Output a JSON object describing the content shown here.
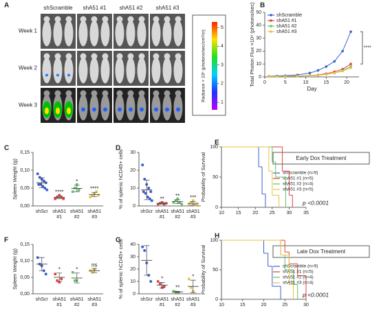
{
  "panel_a": {
    "panel": "A",
    "columns": [
      "shScramble",
      "shA51 #1",
      "shA51 #2",
      "shA51 #3"
    ],
    "rows": [
      "Week 1",
      "Week 2",
      "Week 3"
    ],
    "colorbar": {
      "label": "Radiance × 10⁵ (photons/sec/cm²/sr)",
      "range": [
        0.6,
        5.3
      ],
      "ticks": [
        1,
        2,
        3,
        4,
        5
      ]
    }
  },
  "chart_data": [
    {
      "panel": "B",
      "type": "line",
      "xlabel": "Day",
      "ylabel": "Total Photon Flux ×10⁸ (photons/sec)",
      "xlim": [
        0,
        23
      ],
      "xticks": [
        0,
        5,
        10,
        15,
        20
      ],
      "ylim": [
        0,
        50
      ],
      "yticks": [
        0,
        10,
        20,
        30,
        40,
        50
      ],
      "x": [
        1,
        3,
        5,
        8,
        11,
        13,
        15,
        17,
        19,
        21
      ],
      "series": [
        {
          "name": "shScramble",
          "color": "#3a5fcd",
          "values": [
            0.5,
            0.8,
            1,
            1.5,
            3,
            5,
            8,
            12,
            20,
            35
          ]
        },
        {
          "name": "shA51 #1",
          "color": "#e0403a",
          "values": [
            0.3,
            0.4,
            0.5,
            0.7,
            1,
            1.5,
            2.5,
            4,
            6,
            10
          ]
        },
        {
          "name": "shA51 #2",
          "color": "#5fc35f",
          "values": [
            0.3,
            0.4,
            0.5,
            0.6,
            0.9,
            1.3,
            2,
            3,
            5,
            8
          ]
        },
        {
          "name": "shA51 #3",
          "color": "#e8c040",
          "values": [
            0.3,
            0.4,
            0.5,
            0.6,
            0.8,
            1.2,
            2,
            3,
            4.5,
            7
          ]
        }
      ],
      "annotation": "****"
    },
    {
      "panel": "C",
      "type": "dot",
      "ylabel": "Spleen Weight (g)",
      "ylim": [
        0,
        0.15
      ],
      "yticks": [
        {
          "value": 0,
          "label": "0,00"
        },
        {
          "value": 0.05,
          "label": "0,05"
        },
        {
          "value": 0.1,
          "label": "0,10"
        },
        {
          "value": 0.15,
          "label": "0,15"
        }
      ],
      "groups": [
        {
          "label": [
            "shScr"
          ],
          "color": "#3a5fcd",
          "points": [
            0.09,
            0.08,
            0.075,
            0.07,
            0.065,
            0.06,
            0.06,
            0.055,
            0.05,
            0.045
          ],
          "mean": 0.065,
          "sd": 0.014
        },
        {
          "label": [
            "shA51",
            "#1"
          ],
          "color": "#e0403a",
          "points": [
            0.02,
            0.025,
            0.03,
            0.025,
            0.02
          ],
          "mean": 0.024,
          "sd": 0.004,
          "sig": "****"
        },
        {
          "label": [
            "shA51",
            "#2"
          ],
          "color": "#5fc35f",
          "points": [
            0.04,
            0.05,
            0.06,
            0.045
          ],
          "mean": 0.049,
          "sd": 0.009,
          "sig": "*"
        },
        {
          "label": [
            "shA51",
            "#3"
          ],
          "color": "#e8c040",
          "points": [
            0.025,
            0.03,
            0.035,
            0.04,
            0.03
          ],
          "mean": 0.032,
          "sd": 0.006,
          "sig": "****"
        }
      ]
    },
    {
      "panel": "D",
      "type": "dot",
      "ylabel": "% of splenic hCD45+ cells",
      "ylim": [
        0,
        30
      ],
      "yticks": [
        0,
        10,
        20,
        30
      ],
      "groups": [
        {
          "label": [
            "shScr"
          ],
          "color": "#3a5fcd",
          "points": [
            23,
            15,
            12,
            10,
            8,
            8,
            7,
            5,
            4,
            3
          ],
          "mean": 9,
          "sd": 5.5
        },
        {
          "label": [
            "shA51",
            "#1"
          ],
          "color": "#e0403a",
          "points": [
            1,
            1.5,
            2,
            1,
            1.5
          ],
          "mean": 1.4,
          "sd": 0.4,
          "sig": "**"
        },
        {
          "label": [
            "shA51",
            "#2"
          ],
          "color": "#5fc35f",
          "points": [
            2,
            3,
            4,
            2,
            1
          ],
          "mean": 2.4,
          "sd": 1.1,
          "sig": "**"
        },
        {
          "label": [
            "shA51",
            "#3"
          ],
          "color": "#e8c040",
          "points": [
            1,
            2,
            3,
            0.5,
            1
          ],
          "mean": 1.5,
          "sd": 1,
          "sig": "***"
        }
      ]
    },
    {
      "panel": "E",
      "type": "survival",
      "ylabel": "Probability of Survival",
      "xlim": [
        10,
        35
      ],
      "xticks": [
        10,
        15,
        20,
        25,
        30,
        35
      ],
      "ylim": [
        0,
        100
      ],
      "yticks": [
        0,
        50,
        100
      ],
      "box": "Early Dox Treatment",
      "pvalue": "p <0.0001",
      "series": [
        {
          "name": "shScramble (n=9)",
          "color": "#3a5fcd",
          "x": [
            10,
            21,
            22,
            23
          ],
          "y": [
            100,
            67,
            22,
            0
          ]
        },
        {
          "name": "shA51 #1 (n=5)",
          "color": "#e0403a",
          "x": [
            10,
            28,
            30,
            31
          ],
          "y": [
            100,
            60,
            20,
            0
          ]
        },
        {
          "name": "shA51 #2 (n=4)",
          "color": "#5fc35f",
          "x": [
            10,
            25,
            26,
            29
          ],
          "y": [
            100,
            75,
            50,
            0
          ]
        },
        {
          "name": "shA51 #3 (n=5)",
          "color": "#e8c040",
          "x": [
            10,
            24,
            25,
            27
          ],
          "y": [
            100,
            60,
            20,
            0
          ]
        }
      ]
    },
    {
      "panel": "F",
      "type": "dot",
      "ylabel": "Spleen Weight (g)",
      "ylim": [
        0,
        0.15
      ],
      "yticks": [
        {
          "value": 0,
          "label": "0,00"
        },
        {
          "value": 0.05,
          "label": "0,05"
        },
        {
          "value": 0.1,
          "label": "0,10"
        },
        {
          "value": 0.15,
          "label": "0,15"
        }
      ],
      "groups": [
        {
          "label": [
            "shScr"
          ],
          "color": "#3a5fcd",
          "points": [
            0.11,
            0.09,
            0.085,
            0.07,
            0.06
          ],
          "mean": 0.09,
          "sd": 0.02
        },
        {
          "label": [
            "shA51",
            "#1"
          ],
          "color": "#e0403a",
          "points": [
            0.06,
            0.04,
            0.035,
            0.045
          ],
          "mean": 0.05,
          "sd": 0.013,
          "sig": "*"
        },
        {
          "label": [
            "shA51",
            "#2"
          ],
          "color": "#5fc35f",
          "points": [
            0.065,
            0.04,
            0.04
          ],
          "mean": 0.048,
          "sd": 0.015,
          "sig": "*"
        },
        {
          "label": [
            "shA51",
            "#3"
          ],
          "color": "#e8c040",
          "points": [
            0.07,
            0.065,
            0.075
          ],
          "mean": 0.07,
          "sd": 0.006,
          "sig": "ns"
        }
      ]
    },
    {
      "panel": "G",
      "type": "dot",
      "ylabel": "% of splenic hCD45+ cells",
      "ylim": [
        0,
        40
      ],
      "yticks": [
        0,
        10,
        20,
        30,
        40
      ],
      "groups": [
        {
          "label": [
            "shScr"
          ],
          "color": "#3a5fcd",
          "points": [
            38,
            35,
            25,
            15,
            10
          ],
          "mean": 27,
          "sd": 12
        },
        {
          "label": [
            "shA51",
            "#1"
          ],
          "color": "#e0403a",
          "points": [
            10,
            8,
            5,
            6
          ],
          "mean": 7,
          "sd": 2.2,
          "sig": "*"
        },
        {
          "label": [
            "shA51",
            "#2"
          ],
          "color": "#5fc35f",
          "points": [
            2,
            1.5,
            1
          ],
          "mean": 1.5,
          "sd": 0.5,
          "sig": "**"
        },
        {
          "label": [
            "shA51",
            "#3"
          ],
          "color": "#e8c040",
          "points": [
            12,
            5,
            2
          ],
          "mean": 6,
          "sd": 5,
          "sig": "*"
        }
      ]
    },
    {
      "panel": "H",
      "type": "survival",
      "ylabel": "Probability of Survival",
      "xlim": [
        10,
        30
      ],
      "xticks": [
        10,
        15,
        20,
        25,
        30
      ],
      "ylim": [
        0,
        100
      ],
      "yticks": [
        0,
        50,
        100
      ],
      "box": "Late Dox Treatment",
      "pvalue": "p <0.0001",
      "series": [
        {
          "name": "shScramble (n=9)",
          "color": "#3a5fcd",
          "x": [
            10,
            20,
            21,
            22,
            24
          ],
          "y": [
            100,
            78,
            56,
            22,
            0
          ]
        },
        {
          "name": "shA51 #1 (n=5)",
          "color": "#e0403a",
          "x": [
            10,
            25,
            26,
            28,
            30
          ],
          "y": [
            100,
            80,
            60,
            40,
            0
          ]
        },
        {
          "name": "shA51 #2 (n=4)",
          "color": "#5fc35f",
          "x": [
            10,
            24,
            25,
            27,
            28
          ],
          "y": [
            100,
            75,
            50,
            25,
            0
          ]
        },
        {
          "name": "shA51 #3 (n=4)",
          "color": "#e8c040",
          "x": [
            10,
            24,
            26,
            27
          ],
          "y": [
            100,
            75,
            25,
            0
          ]
        }
      ]
    }
  ]
}
